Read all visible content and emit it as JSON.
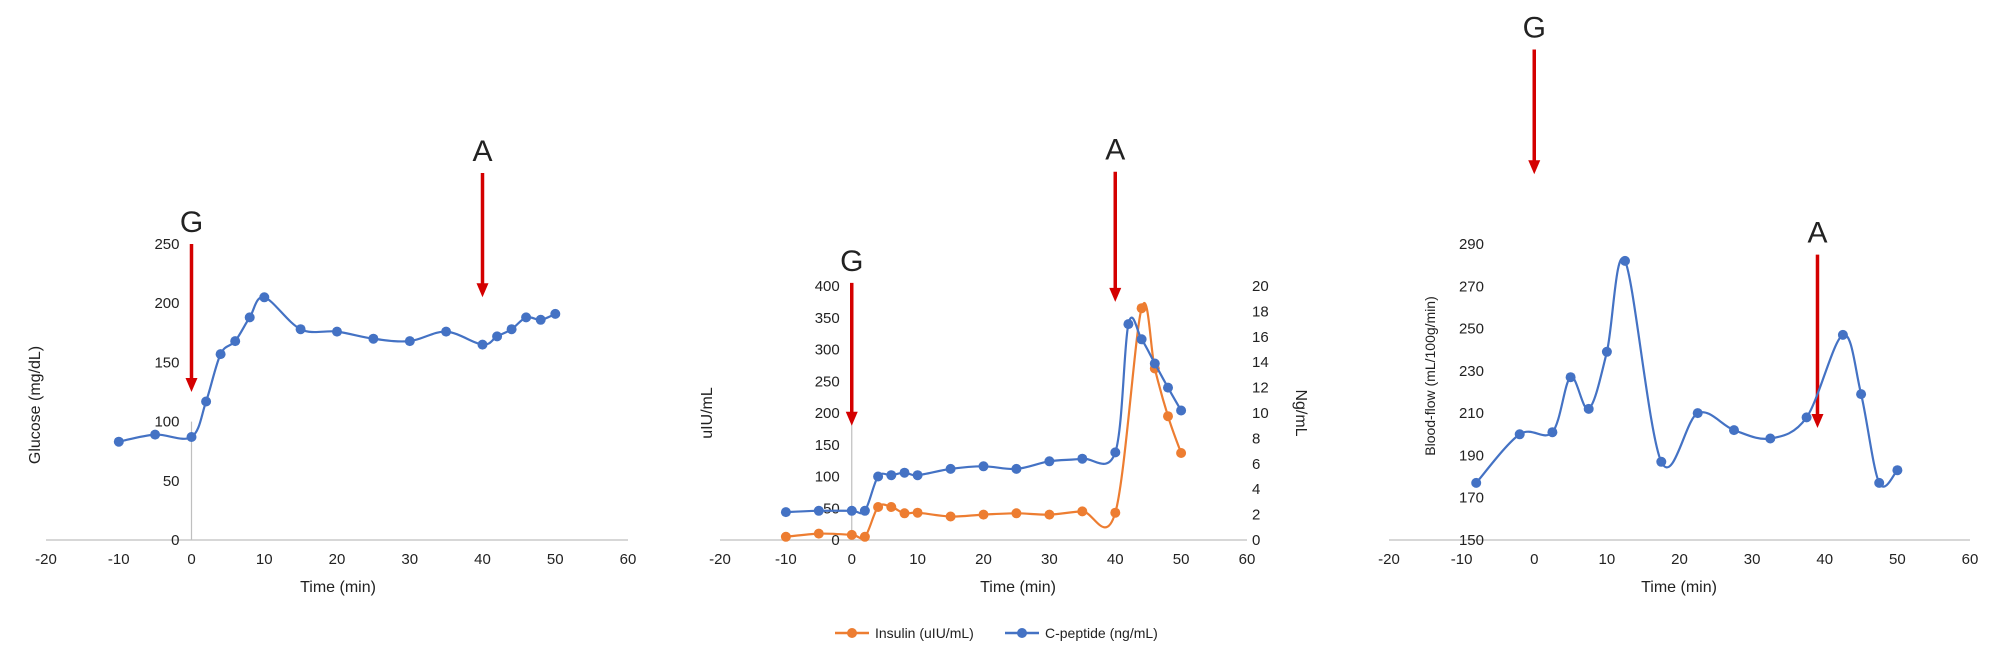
{
  "colors": {
    "blue": "#4472C4",
    "orange": "#ED7D31",
    "red": "#D40000",
    "axis": "#BFBFBF"
  },
  "chart_data": [
    {
      "type": "line",
      "xlabel": "Time (min)",
      "ylabel": "Glucose (mg/dL)",
      "xlim": [
        -20,
        60
      ],
      "ylim": [
        0,
        250
      ],
      "xticks": [
        -20,
        -10,
        0,
        10,
        20,
        30,
        40,
        50,
        60
      ],
      "yticks": [
        0,
        50,
        100,
        150,
        200,
        250
      ],
      "series": [
        {
          "name": "Glucose",
          "x": [
            -10,
            -5,
            0,
            2,
            4,
            6,
            8,
            10,
            15,
            20,
            25,
            30,
            35,
            40,
            42,
            44,
            46,
            48,
            50
          ],
          "values": [
            83,
            89,
            87,
            117,
            157,
            168,
            188,
            205,
            178,
            176,
            170,
            168,
            176,
            165,
            172,
            178,
            188,
            186,
            191
          ]
        }
      ],
      "markers": [
        {
          "label": "G",
          "x": 0,
          "y_top": 250,
          "y_tip": 125
        },
        {
          "label": "A",
          "x": 40,
          "y_top": 310,
          "y_tip": 205
        }
      ]
    },
    {
      "type": "line",
      "xlabel": "Time (min)",
      "ylabel": "uIU/mL",
      "y2label": "Ng/mL",
      "xlim": [
        -20,
        60
      ],
      "ylim": [
        0,
        400
      ],
      "y2lim": [
        0,
        20
      ],
      "xticks": [
        -20,
        -10,
        0,
        10,
        20,
        30,
        40,
        50,
        60
      ],
      "yticks": [
        0,
        50,
        100,
        150,
        200,
        250,
        300,
        350,
        400
      ],
      "y2ticks": [
        0,
        2,
        4,
        6,
        8,
        10,
        12,
        14,
        16,
        18,
        20
      ],
      "series": [
        {
          "name": "Insulin (uIU/mL)",
          "axis": "left",
          "x": [
            -10,
            -5,
            0,
            2,
            4,
            6,
            8,
            10,
            15,
            20,
            25,
            30,
            35,
            40,
            44,
            46,
            48,
            50
          ],
          "values": [
            5,
            10,
            8,
            5,
            52,
            52,
            42,
            43,
            37,
            40,
            42,
            40,
            45,
            43,
            365,
            270,
            195,
            137
          ]
        },
        {
          "name": "C-peptide (ng/mL)",
          "axis": "right",
          "x": [
            -10,
            -5,
            0,
            2,
            4,
            6,
            8,
            10,
            15,
            20,
            25,
            30,
            35,
            40,
            42,
            44,
            46,
            48,
            50
          ],
          "values": [
            2.2,
            2.3,
            2.3,
            2.3,
            5.0,
            5.1,
            5.3,
            5.1,
            5.6,
            5.8,
            5.6,
            6.2,
            6.4,
            6.9,
            17.0,
            15.8,
            13.9,
            12.0,
            10.2
          ]
        }
      ],
      "markers": [
        {
          "label": "G",
          "x": 0,
          "y_top": 405,
          "y_tip": 180
        },
        {
          "label": "A",
          "x": 40,
          "y_top": 580,
          "y_tip": 375
        }
      ]
    },
    {
      "type": "line",
      "xlabel": "Time (min)",
      "ylabel": "Blood-flow (mL/100g/min)",
      "xlim": [
        -20,
        60
      ],
      "ylim": [
        150,
        290
      ],
      "xticks": [
        -20,
        -10,
        0,
        10,
        20,
        30,
        40,
        50,
        60
      ],
      "yticks": [
        150,
        170,
        190,
        210,
        230,
        250,
        270,
        290
      ],
      "series": [
        {
          "name": "Blood-flow",
          "x": [
            -8,
            -2,
            2.5,
            5,
            7.5,
            10,
            12.5,
            17.5,
            22.5,
            27.5,
            32.5,
            37.5,
            42.5,
            45,
            47.5,
            50
          ],
          "values": [
            177,
            200,
            201,
            227,
            212,
            239,
            282,
            187,
            210,
            202,
            198,
            208,
            247,
            219,
            177,
            183
          ]
        }
      ],
      "markers": [
        {
          "label": "G",
          "x": 0,
          "y_top": 382,
          "y_tip": 323
        },
        {
          "label": "A",
          "x": 39,
          "y_top": 285,
          "y_tip": 203
        }
      ]
    }
  ],
  "legend": [
    {
      "label": "Insulin (uIU/mL)",
      "color": "#ED7D31"
    },
    {
      "label": "C-peptide (ng/mL)",
      "color": "#4472C4"
    }
  ]
}
